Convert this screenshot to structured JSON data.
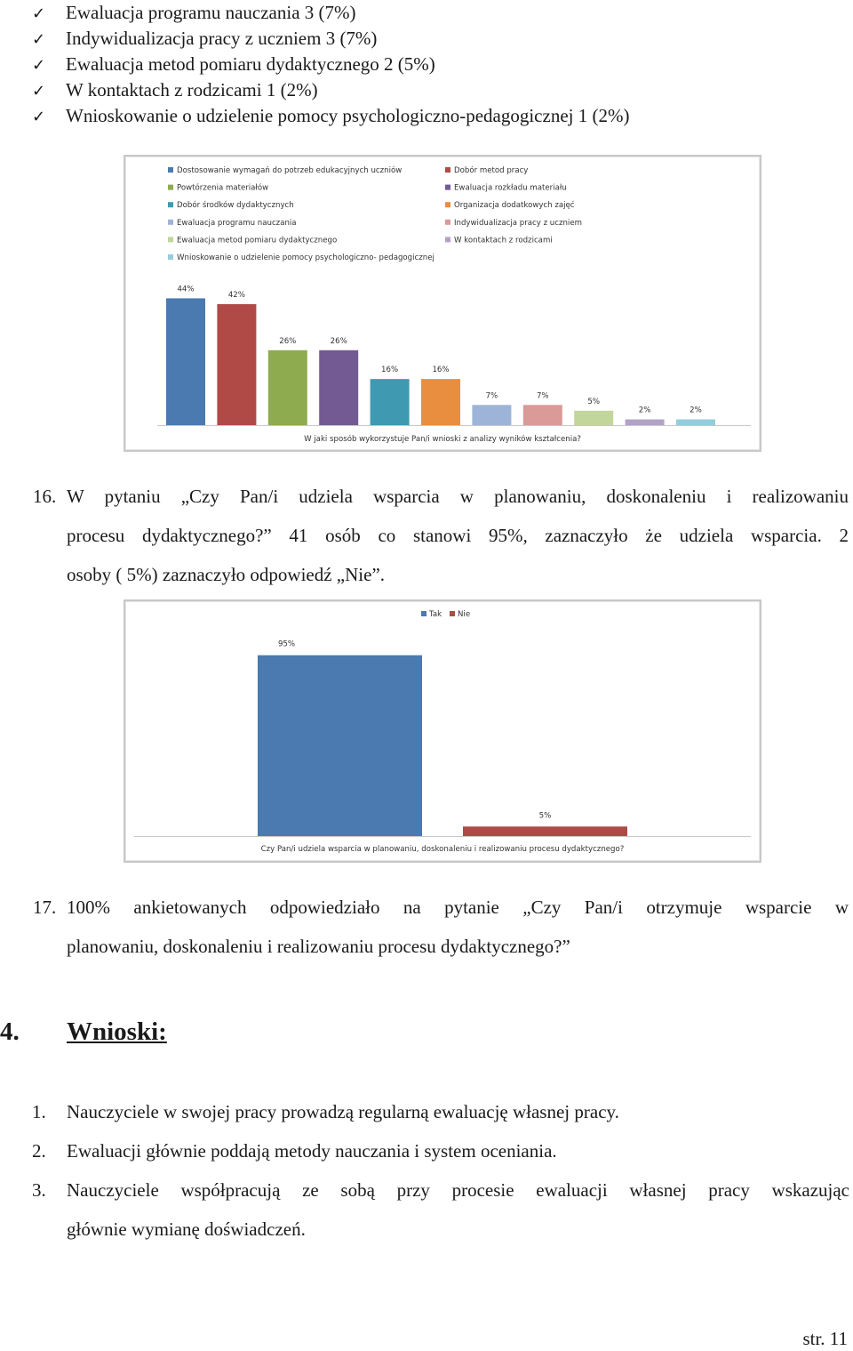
{
  "top_list": [
    "Ewaluacja programu nauczania 3 (7%)",
    "Indywidualizacja pracy z uczniem 3 (7%)",
    "Ewaluacja metod pomiaru dydaktycznego 2 (5%)",
    "W kontaktach z rodzicami 1 (2%)",
    "Wnioskowanie o udzielenie pomocy psychologiczno-pedagogicznej  1 (2%)"
  ],
  "check_glyph": "✓",
  "chart_data": [
    {
      "type": "bar",
      "title": "",
      "xlabel": "W jaki sposób wykorzystuje Pan/i wnioski z analizy wyników kształcenia?",
      "ylabel": "",
      "ylim": [
        0,
        50
      ],
      "grid": false,
      "legend_position": "top",
      "series": [
        {
          "name": "Dostosowanie wymagań do potrzeb edukacyjnych uczniów",
          "label": "44%",
          "value": 44,
          "color": "#4a7ab0"
        },
        {
          "name": "Dobór metod pracy",
          "label": "42%",
          "value": 42,
          "color": "#b04a47"
        },
        {
          "name": "Powtórzenia materiałów",
          "label": "26%",
          "value": 26,
          "color": "#8eac4f"
        },
        {
          "name": "Ewaluacja rozkładu materiału",
          "label": "26%",
          "value": 26,
          "color": "#735a92"
        },
        {
          "name": "Dobór środków dydaktycznych",
          "label": "16%",
          "value": 16,
          "color": "#3f9ab1"
        },
        {
          "name": "Organizacja dodatkowych zajęć",
          "label": "16%",
          "value": 16,
          "color": "#e98d3e"
        },
        {
          "name": "Ewaluacja programu nauczania",
          "label": "7%",
          "value": 7,
          "color": "#9db4d8"
        },
        {
          "name": "Indywidualizacja pracy z uczniem",
          "label": "7%",
          "value": 7,
          "color": "#d99a98"
        },
        {
          "name": "Ewaluacja metod pomiaru dydaktycznego",
          "label": "5%",
          "value": 5,
          "color": "#c2d69b"
        },
        {
          "name": "W kontaktach z rodzicami",
          "label": "2%",
          "value": 2,
          "color": "#b3a2c7"
        },
        {
          "name": "Wnioskowanie o udzielenie pomocy psychologiczno- pedagogicznej",
          "label": "2%",
          "value": 2,
          "color": "#93cddd"
        }
      ]
    },
    {
      "type": "bar",
      "title": "",
      "xlabel": "Czy Pan/i udziela wsparcia w planowaniu, doskonaleniu i realizowaniu procesu dydaktycznego?",
      "ylabel": "",
      "ylim": [
        0,
        100
      ],
      "grid": false,
      "legend_position": "top",
      "series": [
        {
          "name": "Tak",
          "label": "95%",
          "value": 95,
          "color": "#4a7ab0"
        },
        {
          "name": "Nie",
          "label": "5%",
          "value": 5,
          "color": "#b04a47"
        }
      ]
    }
  ],
  "q16": {
    "number": "16.",
    "line1": "W pytaniu „Czy Pan/i udziela wsparcia w planowaniu, doskonaleniu i realizowaniu",
    "line2": "procesu dydaktycznego?” 41 osób co stanowi 95%, zaznaczyło że udziela wsparcia. 2",
    "line3": "osoby ( 5%) zaznaczyło odpowiedź „Nie”."
  },
  "q17": {
    "number": "17.",
    "line1": "100% ankietowanych odpowiedziało na pytanie  „Czy Pan/i otrzymuje wsparcie w",
    "line2": "planowaniu, doskonaleniu i realizowaniu procesu dydaktycznego?”"
  },
  "section": {
    "number": "4.",
    "title": "Wnioski:"
  },
  "conclusions": [
    {
      "n": "1.",
      "line1": "Nauczyciele w swojej pracy prowadzą regularną ewaluację własnej pracy.",
      "line2": ""
    },
    {
      "n": "2.",
      "line1": "Ewaluacji głównie poddają metody nauczania i system oceniania.",
      "line2": ""
    },
    {
      "n": "3.",
      "line1": "Nauczyciele współpracują ze sobą przy procesie ewaluacji własnej pracy wskazując",
      "line2": "głównie wymianę doświadczeń."
    }
  ],
  "page_number": "str. 11"
}
